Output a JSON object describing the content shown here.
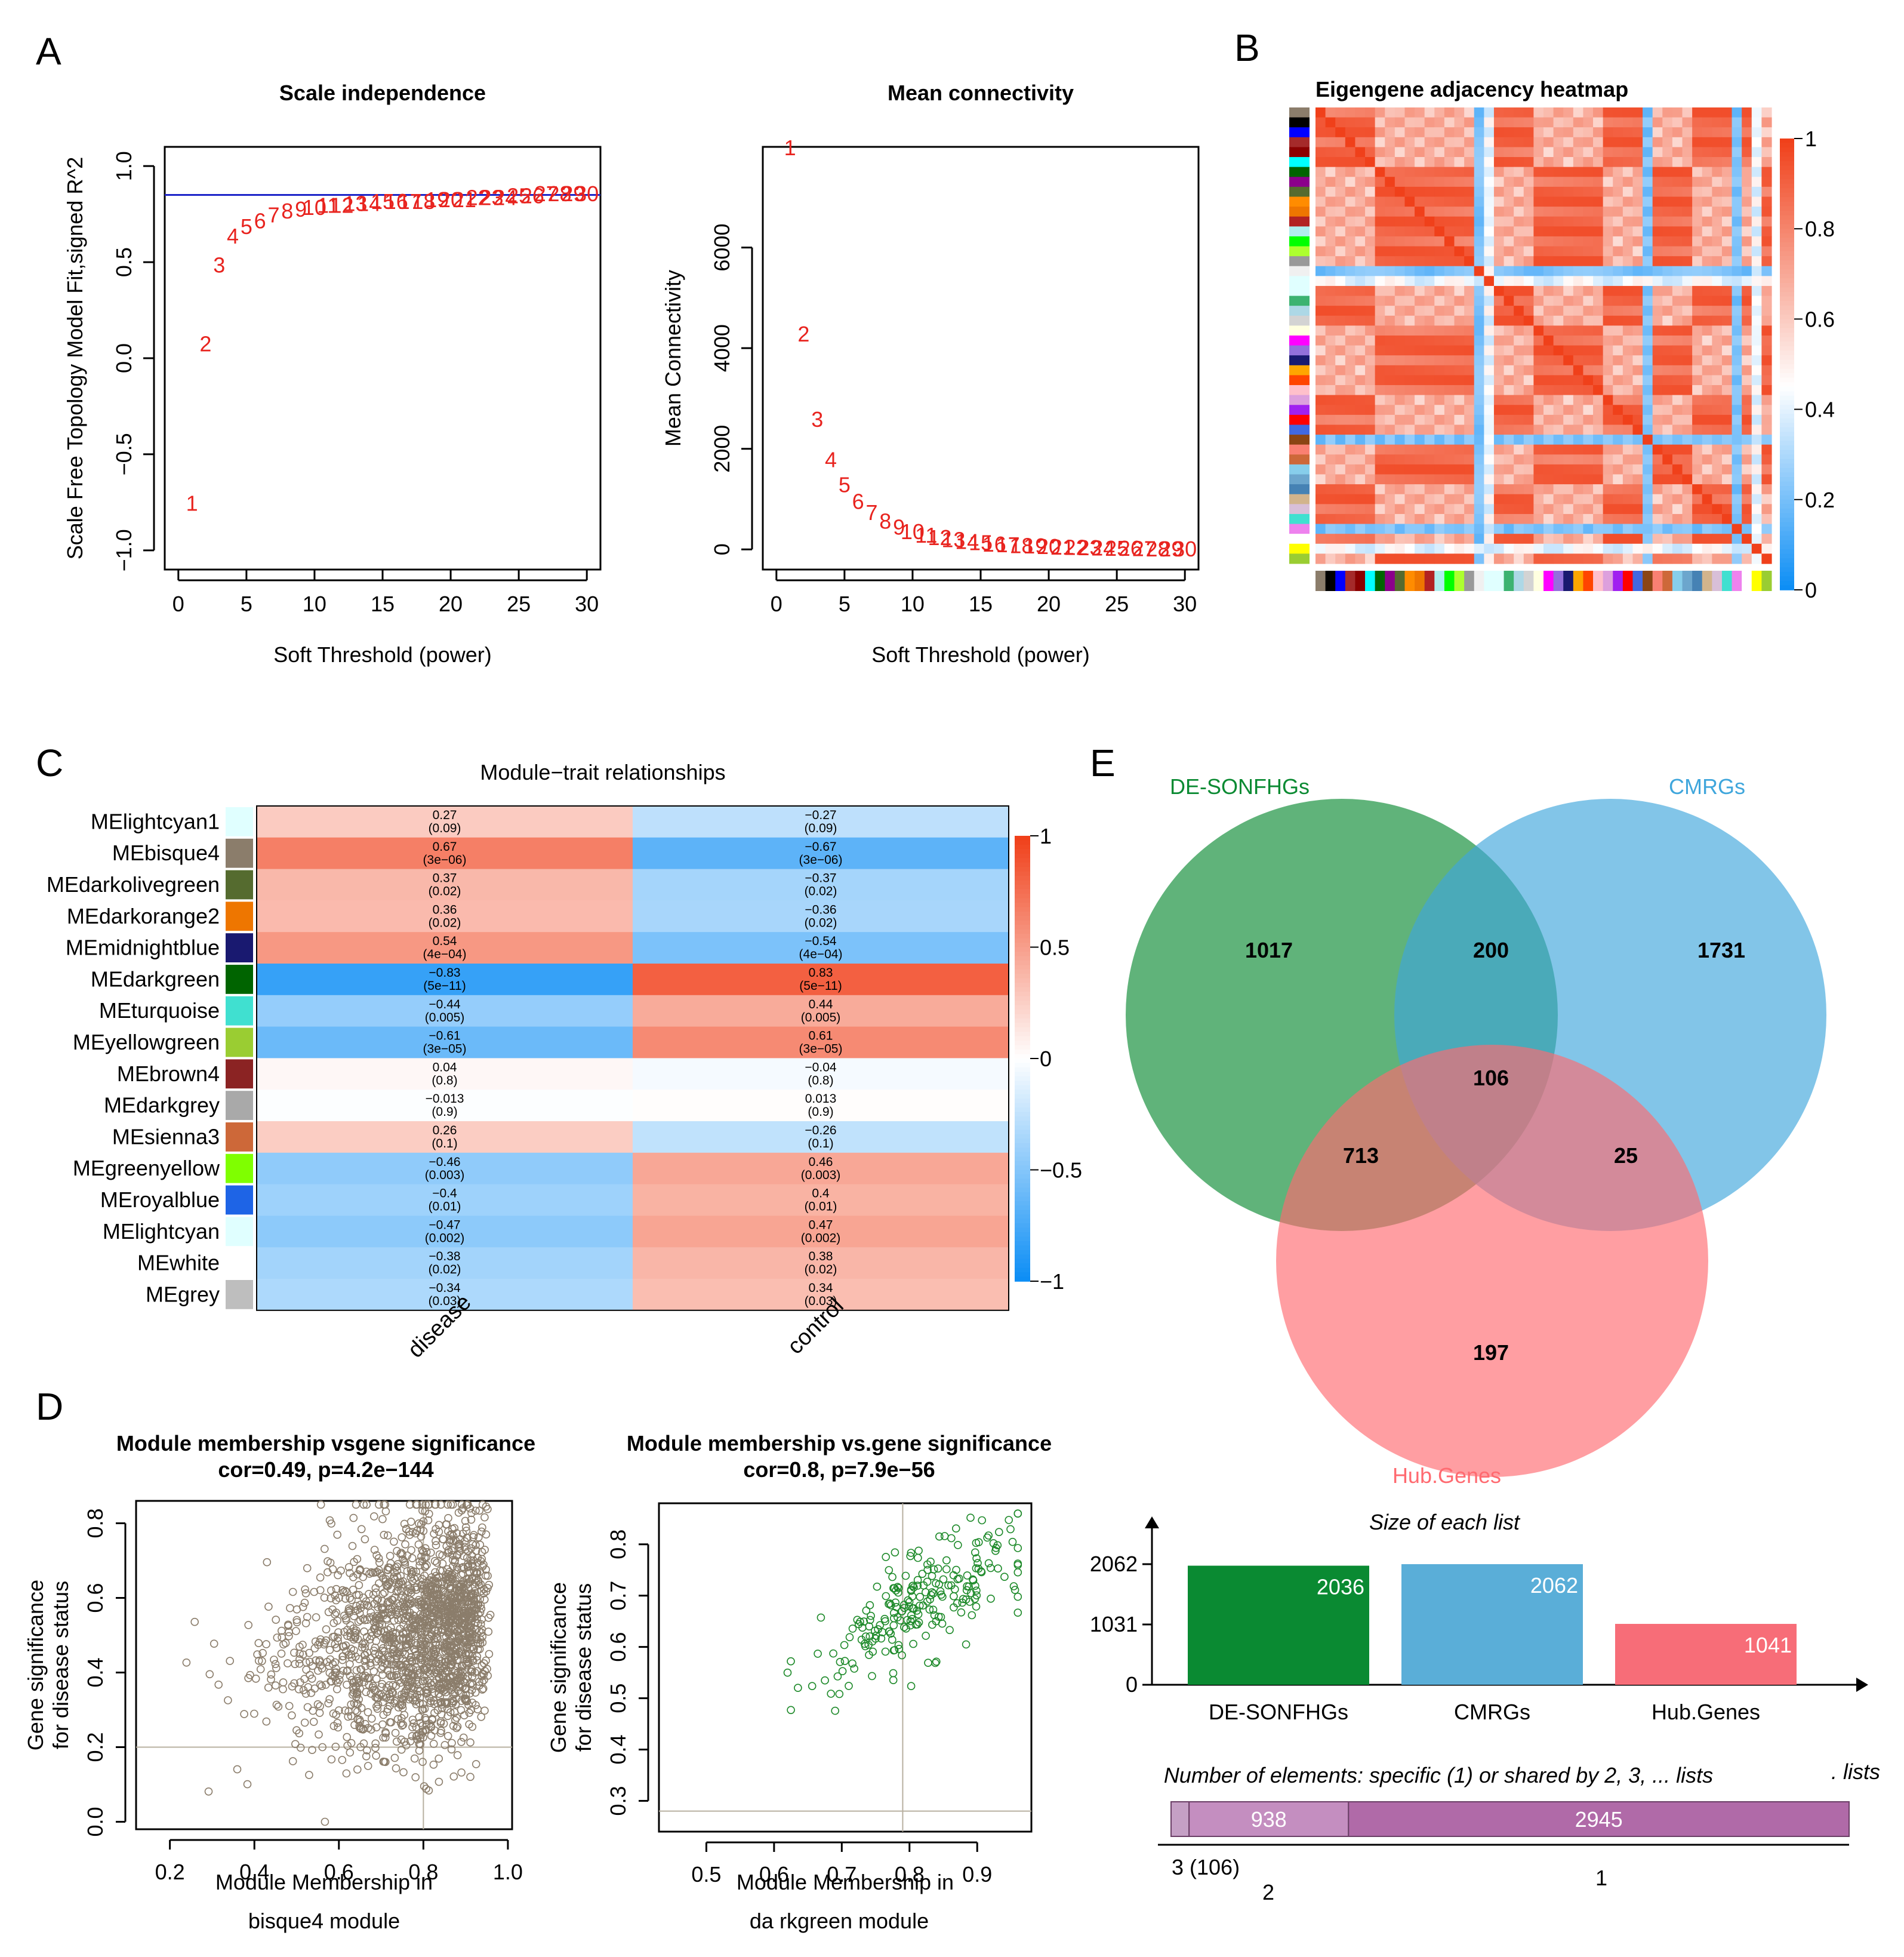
{
  "panel_labels": [
    "A",
    "B",
    "C",
    "D",
    "E"
  ],
  "colors": {
    "red": "#e8231e",
    "blue_line": "#1c24c8",
    "neg": "#0d8ef5",
    "pos": "#f0401a",
    "green": "#0a8a32",
    "skyblue": "#3fa6dc",
    "pink": "#ff6a70",
    "bisque4": "#8b7d6b",
    "darkgreen_pt": "#1e8a2a"
  },
  "chart_data": [
    {
      "id": "A1",
      "type": "scatter",
      "title": "Scale independence",
      "xlabel": "Soft Threshold (power)",
      "ylabel": "Scale Free Topology Model Fit,signed R^2",
      "xlim": [
        -1,
        31
      ],
      "ylim": [
        -1.1,
        1.1
      ],
      "xticks": [
        "0",
        "5",
        "10",
        "15",
        "20",
        "25",
        "30"
      ],
      "yticks": [
        "−1.0",
        "−0.5",
        "0.0",
        "0.5",
        "1.0"
      ],
      "hline": 0.85,
      "x": [
        1,
        2,
        3,
        4,
        5,
        6,
        7,
        8,
        9,
        10,
        11,
        12,
        13,
        14,
        15,
        16,
        17,
        18,
        19,
        20,
        21,
        22,
        23,
        24,
        25,
        26,
        27,
        28,
        29,
        30
      ],
      "y": [
        -0.75,
        0.08,
        0.49,
        0.64,
        0.69,
        0.72,
        0.75,
        0.77,
        0.78,
        0.79,
        0.8,
        0.8,
        0.81,
        0.81,
        0.82,
        0.82,
        0.82,
        0.82,
        0.83,
        0.83,
        0.83,
        0.84,
        0.84,
        0.84,
        0.85,
        0.85,
        0.86,
        0.86,
        0.86,
        0.86
      ]
    },
    {
      "id": "A2",
      "type": "scatter",
      "title": "Mean connectivity",
      "xlabel": "Soft Threshold (power)",
      "ylabel": "Mean Connectivity",
      "xlim": [
        -1,
        31
      ],
      "ylim": [
        -400,
        8000
      ],
      "xticks": [
        "0",
        "5",
        "10",
        "15",
        "20",
        "25",
        "30"
      ],
      "yticks": [
        "0",
        "2000",
        "4000",
        "6000"
      ],
      "x": [
        1,
        2,
        3,
        4,
        5,
        6,
        7,
        8,
        9,
        10,
        11,
        12,
        13,
        14,
        15,
        16,
        17,
        18,
        19,
        20,
        21,
        22,
        23,
        24,
        25,
        26,
        27,
        28,
        29,
        30
      ],
      "y": [
        8000,
        4300,
        2600,
        1800,
        1300,
        970,
        750,
        580,
        460,
        370,
        300,
        250,
        210,
        175,
        150,
        125,
        110,
        95,
        85,
        75,
        65,
        58,
        52,
        46,
        41,
        37,
        33,
        30,
        27,
        25
      ]
    },
    {
      "id": "B",
      "type": "heatmap",
      "title": "Eigengene adjacency heatmap",
      "colorbar_ticks": [
        "0",
        "0.2",
        "0.4",
        "0.6",
        "0.8",
        "1"
      ],
      "n": 46,
      "modules": [
        "bisque4",
        "black",
        "blue",
        "brown",
        "darkred",
        "cyan",
        "darkgreen",
        "darkmagenta",
        "darkolivegreen",
        "darkorange",
        "darkorange2",
        "firebrick",
        "paleturquoise",
        "green",
        "greenyellow",
        "grey60",
        "white",
        "lightcyan",
        "lightcyan1",
        "mediumseagreen",
        "lightblue",
        "lightgrey",
        "lightyellow",
        "magenta",
        "mediumpurple",
        "midnightblue",
        "orange",
        "orangered",
        "pink",
        "plum",
        "purple",
        "red",
        "royalblue",
        "saddlebrown",
        "salmon",
        "sienna3",
        "skyblue",
        "skyblue3",
        "steelblue",
        "tan",
        "thistle",
        "turquoise",
        "violet",
        "white2",
        "yellow",
        "yellowgreen"
      ],
      "groups": [
        0,
        0,
        0,
        0,
        0,
        0,
        1,
        1,
        1,
        1,
        1,
        1,
        1,
        1,
        1,
        1,
        2,
        3,
        0,
        0,
        0,
        0,
        1,
        1,
        1,
        1,
        1,
        1,
        1,
        0,
        0,
        0,
        0,
        2,
        1,
        1,
        1,
        1,
        0,
        0,
        0,
        0,
        2,
        0,
        3,
        1
      ],
      "colors": [
        "#8b7d6b",
        "#000000",
        "#0000ff",
        "#a52a2a",
        "#8b0000",
        "#00ffff",
        "#006400",
        "#8b008b",
        "#556b2f",
        "#ff8c00",
        "#ee7600",
        "#b22222",
        "#afeeee",
        "#00ff00",
        "#adff2f",
        "#999999",
        "#f0f0f0",
        "#e0ffff",
        "#e0ffff",
        "#3cb371",
        "#add8e6",
        "#d3d3d3",
        "#ffffe0",
        "#ff00ff",
        "#9370db",
        "#191970",
        "#ffa500",
        "#ff4500",
        "#ffc0cb",
        "#dda0dd",
        "#a020f0",
        "#ff0000",
        "#4169e1",
        "#8b4513",
        "#fa8072",
        "#cd6839",
        "#87ceeb",
        "#6ca6cd",
        "#4682b4",
        "#d2b48c",
        "#d8bfd8",
        "#40e0d0",
        "#ee82ee",
        "#ffffff",
        "#ffff00",
        "#9acd32"
      ]
    },
    {
      "id": "C",
      "type": "heatmap",
      "title": "Module−trait relationships",
      "columns": [
        "disease",
        "control"
      ],
      "colorbar_ticks": [
        "1",
        "0.5",
        "0",
        "−0.5",
        "−1"
      ],
      "rows": [
        {
          "name": "MElightcyan1",
          "color": "#e0ffff",
          "disease": 0.27,
          "d_label": "0.27",
          "d_p": "(0.09)",
          "control": -0.27,
          "c_label": "−0.27",
          "c_p": "(0.09)"
        },
        {
          "name": "MEbisque4",
          "color": "#8b7d6b",
          "disease": 0.67,
          "d_label": "0.67",
          "d_p": "(3e−06)",
          "control": -0.67,
          "c_label": "−0.67",
          "c_p": "(3e−06)"
        },
        {
          "name": "MEdarkolivegreen",
          "color": "#556b2f",
          "disease": 0.37,
          "d_label": "0.37",
          "d_p": "(0.02)",
          "control": -0.37,
          "c_label": "−0.37",
          "c_p": "(0.02)"
        },
        {
          "name": "MEdarkorange2",
          "color": "#ee7600",
          "disease": 0.36,
          "d_label": "0.36",
          "d_p": "(0.02)",
          "control": -0.36,
          "c_label": "−0.36",
          "c_p": "(0.02)"
        },
        {
          "name": "MEmidnightblue",
          "color": "#191970",
          "disease": 0.54,
          "d_label": "0.54",
          "d_p": "(4e−04)",
          "control": -0.54,
          "c_label": "−0.54",
          "c_p": "(4e−04)"
        },
        {
          "name": "MEdarkgreen",
          "color": "#006400",
          "disease": -0.83,
          "d_label": "−0.83",
          "d_p": "(5e−11)",
          "control": 0.83,
          "c_label": "0.83",
          "c_p": "(5e−11)"
        },
        {
          "name": "MEturquoise",
          "color": "#40e0d0",
          "disease": -0.44,
          "d_label": "−0.44",
          "d_p": "(0.005)",
          "control": 0.44,
          "c_label": "0.44",
          "c_p": "(0.005)"
        },
        {
          "name": "MEyellowgreen",
          "color": "#9acd32",
          "disease": -0.61,
          "d_label": "−0.61",
          "d_p": "(3e−05)",
          "control": 0.61,
          "c_label": "0.61",
          "c_p": "(3e−05)"
        },
        {
          "name": "MEbrown4",
          "color": "#8b2323",
          "disease": 0.04,
          "d_label": "0.04",
          "d_p": "(0.8)",
          "control": -0.04,
          "c_label": "−0.04",
          "c_p": "(0.8)"
        },
        {
          "name": "MEdarkgrey",
          "color": "#a9a9a9",
          "disease": -0.013,
          "d_label": "−0.013",
          "d_p": "(0.9)",
          "control": 0.013,
          "c_label": "0.013",
          "c_p": "(0.9)"
        },
        {
          "name": "MEsienna3",
          "color": "#cd6839",
          "disease": 0.26,
          "d_label": "0.26",
          "d_p": "(0.1)",
          "control": -0.26,
          "c_label": "−0.26",
          "c_p": "(0.1)"
        },
        {
          "name": "MEgreenyellow",
          "color": "#7fff00",
          "disease": -0.46,
          "d_label": "−0.46",
          "d_p": "(0.003)",
          "control": 0.46,
          "c_label": "0.46",
          "c_p": "(0.003)"
        },
        {
          "name": "MEroyalblue",
          "color": "#1e64e6",
          "disease": -0.4,
          "d_label": "−0.4",
          "d_p": "(0.01)",
          "control": 0.4,
          "c_label": "0.4",
          "c_p": "(0.01)"
        },
        {
          "name": "MElightcyan",
          "color": "#e0ffff",
          "disease": -0.47,
          "d_label": "−0.47",
          "d_p": "(0.002)",
          "control": 0.47,
          "c_label": "0.47",
          "c_p": "(0.002)"
        },
        {
          "name": "MEwhite",
          "color": "#ffffff",
          "disease": -0.38,
          "d_label": "−0.38",
          "d_p": "(0.02)",
          "control": 0.38,
          "c_label": "0.38",
          "c_p": "(0.02)"
        },
        {
          "name": "MEgrey",
          "color": "#bebebe",
          "disease": -0.34,
          "d_label": "−0.34",
          "d_p": "(0.03)",
          "control": 0.34,
          "c_label": "0.34",
          "c_p": "(0.03)"
        }
      ]
    },
    {
      "id": "D1",
      "type": "scatter",
      "title": "Module membership vsgene significance",
      "subtitle": "cor=0.49, p=4.2e−144",
      "xlabel": "Module Membership in",
      "xlabel2": "bisque4 module",
      "ylabel": "Gene significance",
      "ylabel2": "for disease status",
      "xlim": [
        0.12,
        1.01
      ],
      "ylim": [
        -0.02,
        0.86
      ],
      "xticks": [
        0.2,
        0.4,
        0.6,
        0.8,
        1.0
      ],
      "xtick_labels": [
        "0.2",
        "0.4",
        "0.6",
        "0.8",
        "1.0"
      ],
      "yticks": [
        0.0,
        0.2,
        0.4,
        0.6,
        0.8
      ],
      "ytick_labels": [
        "0.0",
        "0.2",
        "0.4",
        "0.6",
        "0.8"
      ],
      "ref_x": 0.8,
      "ref_y": 0.2,
      "n_points": 1800,
      "point_cloud": {
        "x_range": [
          0.15,
          0.96
        ],
        "y_range": [
          0.0,
          0.85
        ],
        "cor": 0.49
      }
    },
    {
      "id": "D2",
      "type": "scatter",
      "title": "Module membership vs.gene significance",
      "subtitle": "cor=0.8, p=7.9e−56",
      "xlabel": "Module Membership in",
      "xlabel2": "da   rkgreen module",
      "ylabel": "Gene significance",
      "ylabel2": "for disease status",
      "xlim": [
        0.43,
        0.98
      ],
      "ylim": [
        0.24,
        0.88
      ],
      "xticks": [
        0.5,
        0.6,
        0.7,
        0.8,
        0.9
      ],
      "xtick_labels": [
        "0.5",
        "0.6",
        "0.7",
        "0.8",
        "0.9"
      ],
      "yticks": [
        0.3,
        0.4,
        0.5,
        0.6,
        0.7,
        0.8
      ],
      "ytick_labels": [
        "0.3",
        "0.4",
        "0.5",
        "0.6",
        "0.7",
        "0.8"
      ],
      "ref_x": 0.79,
      "ref_y": 0.28,
      "n_points": 230,
      "point_cloud": {
        "x_range": [
          0.45,
          0.96
        ],
        "y_range": [
          0.26,
          0.86
        ],
        "cor": 0.8
      }
    },
    {
      "id": "E-venn",
      "type": "venn",
      "sets": [
        {
          "name": "DE-SONFHGs",
          "color": "#0a8a32",
          "size": 2036
        },
        {
          "name": "CMRGs",
          "color": "#3fa6dc",
          "size": 2062
        },
        {
          "name": "Hub.Genes",
          "color": "#ff6a70",
          "size": 1041
        }
      ],
      "regions": {
        "DE-SONFHGs": "1017",
        "CMRGs": "1731",
        "Hub.Genes": "197",
        "DE-SONFHGs&CMRGs": "200",
        "DE-SONFHGs&Hub.Genes": "713",
        "CMRGs&Hub.Genes": "25",
        "all": "106"
      }
    },
    {
      "id": "E-bars",
      "type": "bar",
      "title": "Size of each list",
      "categories": [
        "DE-SONFHGs",
        "CMRGs",
        "Hub.Genes"
      ],
      "values": [
        2036,
        2062,
        1041
      ],
      "value_labels": [
        "2036",
        "2062",
        "1041"
      ],
      "colors": [
        "#0a8a32",
        "#5aaed8",
        "#f76d78"
      ],
      "yticks": [
        "2062",
        "1031",
        "0"
      ],
      "ylim": [
        0,
        2062
      ]
    },
    {
      "id": "E-shared",
      "type": "bar",
      "title": "Number of elements: specific (1) or shared by 2, 3, ... lists",
      "title_tail": ". lists",
      "segments": [
        {
          "shared_by": "3",
          "value": 106,
          "label": "",
          "axis_label": "3 (106)"
        },
        {
          "shared_by": "2",
          "value": 938,
          "label": "938",
          "axis_label": "2"
        },
        {
          "shared_by": "1",
          "value": 2945,
          "label": "2945",
          "axis_label": "1"
        }
      ]
    }
  ]
}
